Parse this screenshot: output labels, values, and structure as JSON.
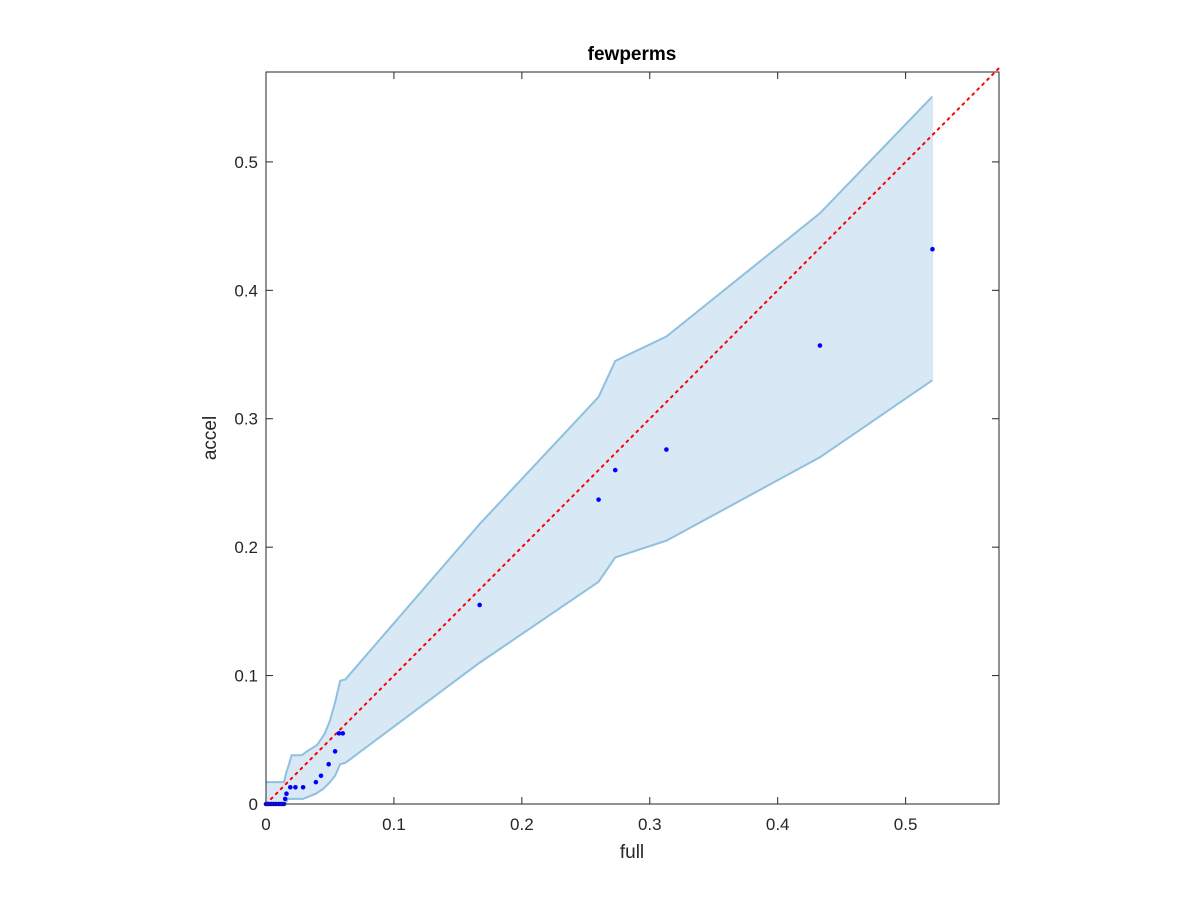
{
  "chart_data": {
    "type": "scatter",
    "title": "fewperms",
    "xlabel": "full",
    "ylabel": "accel",
    "xlim": [
      0,
      0.573
    ],
    "ylim": [
      0,
      0.57
    ],
    "xticks": [
      0,
      0.1,
      0.2,
      0.3,
      0.4,
      0.5
    ],
    "xtick_labels": [
      "0",
      "0.1",
      "0.2",
      "0.3",
      "0.4",
      "0.5"
    ],
    "yticks": [
      0,
      0.1,
      0.2,
      0.3,
      0.4,
      0.5
    ],
    "ytick_labels": [
      "0",
      "0.1",
      "0.2",
      "0.3",
      "0.4",
      "0.5"
    ],
    "grid": false,
    "box": true,
    "colors": {
      "points": "#0000ff",
      "band_fill": "#d9e8f5",
      "band_edge": "#8fc0e0",
      "diagonal": "#ff0000",
      "axes": "#262626"
    },
    "points": [
      {
        "x": 0.0,
        "y": 0.0
      },
      {
        "x": 0.002,
        "y": 0.0
      },
      {
        "x": 0.004,
        "y": 0.0
      },
      {
        "x": 0.006,
        "y": 0.0
      },
      {
        "x": 0.008,
        "y": 0.0
      },
      {
        "x": 0.01,
        "y": 0.0
      },
      {
        "x": 0.012,
        "y": 0.0
      },
      {
        "x": 0.014,
        "y": 0.0
      },
      {
        "x": 0.015,
        "y": 0.004
      },
      {
        "x": 0.016,
        "y": 0.008
      },
      {
        "x": 0.019,
        "y": 0.013
      },
      {
        "x": 0.023,
        "y": 0.013
      },
      {
        "x": 0.029,
        "y": 0.013
      },
      {
        "x": 0.039,
        "y": 0.017
      },
      {
        "x": 0.043,
        "y": 0.022
      },
      {
        "x": 0.049,
        "y": 0.031
      },
      {
        "x": 0.054,
        "y": 0.041
      },
      {
        "x": 0.057,
        "y": 0.055
      },
      {
        "x": 0.06,
        "y": 0.055
      },
      {
        "x": 0.167,
        "y": 0.155
      },
      {
        "x": 0.26,
        "y": 0.237
      },
      {
        "x": 0.273,
        "y": 0.26
      },
      {
        "x": 0.313,
        "y": 0.276
      },
      {
        "x": 0.433,
        "y": 0.357
      },
      {
        "x": 0.521,
        "y": 0.432
      }
    ],
    "band_upper": [
      [
        0.0,
        0.017
      ],
      [
        0.014,
        0.017
      ],
      [
        0.016,
        0.025
      ],
      [
        0.018,
        0.031
      ],
      [
        0.02,
        0.038
      ],
      [
        0.028,
        0.038
      ],
      [
        0.032,
        0.041
      ],
      [
        0.04,
        0.046
      ],
      [
        0.046,
        0.055
      ],
      [
        0.05,
        0.065
      ],
      [
        0.054,
        0.079
      ],
      [
        0.058,
        0.096
      ],
      [
        0.062,
        0.097
      ],
      [
        0.167,
        0.218
      ],
      [
        0.26,
        0.317
      ],
      [
        0.273,
        0.345
      ],
      [
        0.313,
        0.364
      ],
      [
        0.433,
        0.46
      ],
      [
        0.521,
        0.551
      ]
    ],
    "band_lower": [
      [
        0.0,
        0.0
      ],
      [
        0.015,
        0.0
      ],
      [
        0.017,
        0.004
      ],
      [
        0.02,
        0.004
      ],
      [
        0.029,
        0.004
      ],
      [
        0.039,
        0.008
      ],
      [
        0.045,
        0.012
      ],
      [
        0.05,
        0.017
      ],
      [
        0.054,
        0.022
      ],
      [
        0.058,
        0.031
      ],
      [
        0.062,
        0.032
      ],
      [
        0.167,
        0.11
      ],
      [
        0.26,
        0.173
      ],
      [
        0.273,
        0.192
      ],
      [
        0.313,
        0.205
      ],
      [
        0.433,
        0.27
      ],
      [
        0.521,
        0.33
      ]
    ],
    "reference_line": {
      "style": "dotted",
      "from": [
        0,
        0
      ],
      "to": [
        0.573,
        0.573
      ]
    }
  }
}
